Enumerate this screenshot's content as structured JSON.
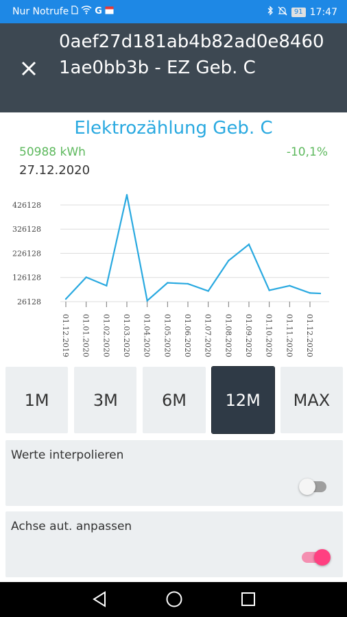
{
  "status_bar": {
    "carrier": "Nur Notrufe",
    "g_label": "G",
    "battery": "91",
    "time": "17:47"
  },
  "app_bar": {
    "close_icon": "close-icon",
    "title": "0aef27d181ab4b82ad0e84601ae0bb3b - EZ Geb. C"
  },
  "chart_header": {
    "title": "Elektrozählung Geb. C",
    "value": "50988 kWh",
    "change": "-10,1%",
    "date": "27.12.2020"
  },
  "colors": {
    "accent": "#29a9e0",
    "positive": "#5cb85c",
    "appbar": "#3d4852",
    "active_button": "#2f3a46",
    "toggle_on": "#ff4081"
  },
  "chart_data": {
    "type": "line",
    "x": [
      "01.12.2019",
      "01.01.2020",
      "01.02.2020",
      "01.03.2020",
      "01.04.2020",
      "01.05.2020",
      "01.06.2020",
      "01.07.2020",
      "01.08.2020",
      "01.09.2020",
      "01.10.2020",
      "01.11.2020",
      "01.12.2020"
    ],
    "extra_trailing_point": 60000,
    "values": [
      37000,
      127000,
      92000,
      468000,
      30000,
      104000,
      100000,
      70000,
      196000,
      263000,
      73000,
      92000,
      62000
    ],
    "y_ticks": [
      26128,
      126128,
      226128,
      326128,
      426128
    ],
    "ylim": [
      26128,
      480000
    ],
    "grid": true,
    "line_color": "#29a9e0"
  },
  "periods": {
    "buttons": [
      "1M",
      "3M",
      "6M",
      "12M",
      "MAX"
    ],
    "selected": "12M"
  },
  "options": {
    "interpolate": {
      "label": "Werte interpolieren",
      "on": false
    },
    "auto_axis": {
      "label": "Achse aut. anpassen",
      "on": true
    }
  },
  "nav": {
    "back": "back-triangle-icon",
    "home": "home-circle-icon",
    "recents": "recents-square-icon"
  }
}
